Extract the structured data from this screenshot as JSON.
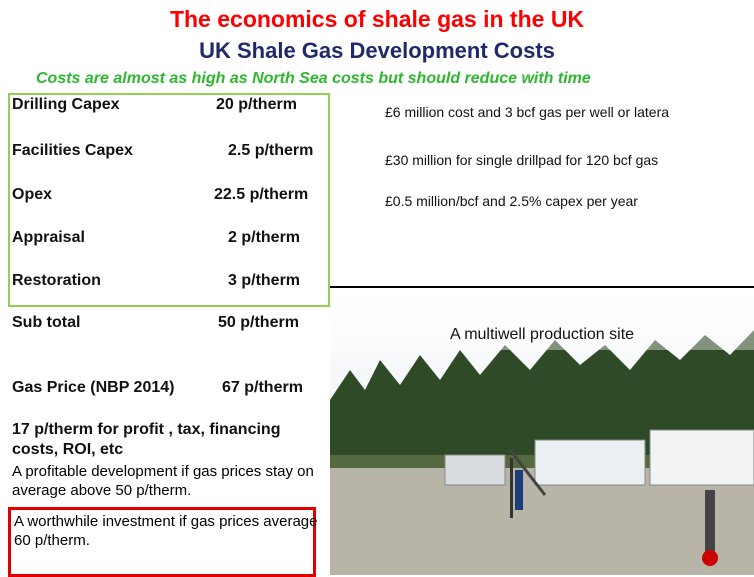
{
  "header": {
    "title": "The economics of shale gas in the UK",
    "subtitle": "UK Shale Gas Development Costs",
    "tagline": "Costs are almost as high as North Sea costs but should reduce with time"
  },
  "costs": {
    "rows": [
      [
        "Drilling Capex",
        "20 p/therm"
      ],
      [
        "Facilities Capex",
        "2.5 p/therm"
      ],
      [
        "Opex",
        "22.5  p/therm"
      ],
      [
        "Appraisal",
        "2 p/therm"
      ],
      [
        "Restoration",
        "3 p/therm"
      ]
    ],
    "subtotal": [
      "Sub total",
      "50 p/therm"
    ],
    "gas_price": [
      "Gas Price (NBP 2014)",
      "67 p/therm"
    ]
  },
  "notes": [
    "£6 million cost and 3 bcf gas per well or latera",
    "£30 million for single drillpad for 120 bcf gas",
    "£0.5 million/bcf and 2.5% capex per year"
  ],
  "conclusions": {
    "margin": "17 p/therm for profit , tax, financing costs, ROI, etc",
    "profitable": "A profitable development if gas prices stay on average above 50 p/therm.",
    "worthwhile": "A worthwhile investment if gas prices average 60 p/therm."
  },
  "photo": {
    "caption": "A multiwell production site"
  }
}
